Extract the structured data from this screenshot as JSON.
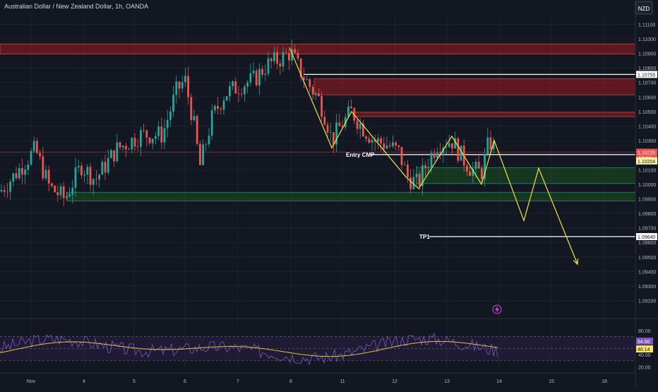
{
  "header": {
    "title": "Australian Dollar / New Zealand Dollar, 1h, OANDA"
  },
  "currency_label": "NZD",
  "colors": {
    "background": "#131722",
    "up_candle": "#26a69a",
    "down_candle": "#ef5350",
    "grid": "#1e222d",
    "axis_text": "#b2b5be",
    "zigzag": "#f0e442",
    "level_line": "#ffffff",
    "red_zone": "#b71c1c",
    "green_zone": "#1b5e20",
    "rsi_line": "#7e57c2",
    "rsi_ma": "#d8c63a",
    "rsi_band": "#2a1f45"
  },
  "chart_data": {
    "type": "candlestick",
    "title": "Australian Dollar / New Zealand Dollar, 1h, OANDA",
    "ylim": [
      1.0913,
      1.1116
    ],
    "y_ticks": [
      "1.11100",
      "1.11000",
      "1.10900",
      "1.10800",
      "1.10700",
      "1.10600",
      "1.10500",
      "1.10400",
      "1.10300",
      "1.10200",
      "1.10100",
      "1.10000",
      "1.09900",
      "1.09800",
      "1.09700",
      "1.09600",
      "1.09500",
      "1.09400",
      "1.09300",
      "1.09200"
    ],
    "x_ticks": [
      "Nov",
      "4",
      "5",
      "6",
      "7",
      "8",
      "11",
      "12",
      "13",
      "14",
      "15",
      "18"
    ],
    "candles_anchor_path": [
      [
        0,
        1.0995
      ],
      [
        20,
        1.1006
      ],
      [
        50,
        1.1024
      ],
      [
        70,
        1.0998
      ],
      [
        92,
        1.099
      ],
      [
        115,
        1.1013
      ],
      [
        135,
        1.1003
      ],
      [
        165,
        1.1024
      ],
      [
        200,
        1.1034
      ],
      [
        230,
        1.1034
      ],
      [
        250,
        1.1064
      ],
      [
        262,
        1.1072
      ],
      [
        275,
        1.104
      ],
      [
        283,
        1.1012
      ],
      [
        300,
        1.1045
      ],
      [
        318,
        1.1062
      ],
      [
        340,
        1.1068
      ],
      [
        360,
        1.1072
      ],
      [
        378,
        1.1082
      ],
      [
        400,
        1.1087
      ],
      [
        412,
        1.1091
      ],
      [
        425,
        1.1078
      ],
      [
        438,
        1.1068
      ],
      [
        452,
        1.1058
      ],
      [
        462,
        1.1045
      ],
      [
        470,
        1.103
      ],
      [
        482,
        1.104
      ],
      [
        498,
        1.105
      ],
      [
        512,
        1.104
      ],
      [
        530,
        1.103
      ],
      [
        550,
        1.1027
      ],
      [
        565,
        1.1022
      ],
      [
        577,
        1.1005
      ],
      [
        592,
        1.1
      ],
      [
        605,
        1.1015
      ],
      [
        620,
        1.1028
      ],
      [
        640,
        1.103
      ],
      [
        655,
        1.1018
      ],
      [
        668,
        1.101
      ],
      [
        682,
        1.1008
      ],
      [
        693,
        1.103
      ],
      [
        700,
        1.1025
      ]
    ],
    "price_labels": [
      {
        "text": "1.10755",
        "value": 1.10755,
        "style": "white"
      },
      {
        "text": "1.10220",
        "value": 1.1022,
        "style": "red",
        "sub": "59:06"
      },
      {
        "text": "1.10204",
        "value": 1.10204,
        "style": "yellow"
      },
      {
        "text": "1.09640",
        "value": 1.0964,
        "style": "white"
      }
    ],
    "red_zones": [
      {
        "from_x": 0,
        "y_top": 1.10965,
        "y_bot": 1.10895
      },
      {
        "from_x": 445,
        "y_top": 1.10725,
        "y_bot": 1.10615
      },
      {
        "from_x": 500,
        "y_top": 1.10495,
        "y_bot": 1.10465
      }
    ],
    "green_zones": [
      {
        "from_x": 590,
        "y_top": 1.10115,
        "y_bot": 1.10005
      },
      {
        "from_x": 95,
        "y_top": 1.09945,
        "y_bot": 1.09885
      }
    ],
    "horizontal_lines": [
      {
        "from_x": 430,
        "value": 1.10755,
        "color": "white"
      },
      {
        "from_x": 0,
        "value": 1.10222,
        "color": "red"
      },
      {
        "from_x": 525,
        "value": 1.10204,
        "color": "white"
      },
      {
        "from_x": 608,
        "value": 1.0964,
        "color": "white"
      }
    ],
    "annotations": [
      {
        "text": "Entry CMP",
        "x": 490,
        "value": 1.10204
      },
      {
        "text": "TP1",
        "x": 594,
        "value": 1.0964
      }
    ],
    "zigzag": [
      [
        410,
        1.1094
      ],
      [
        470,
        1.1025
      ],
      [
        498,
        1.105
      ],
      [
        575,
        1.1005
      ],
      [
        593,
        1.0997
      ],
      [
        640,
        1.1033
      ],
      [
        682,
        1.1
      ],
      [
        700,
        1.103
      ],
      [
        742,
        1.0975
      ],
      [
        763,
        1.1011
      ],
      [
        818,
        1.0945
      ]
    ],
    "rsi": {
      "y_ticks": [
        "80.00",
        "60.00",
        "40.00",
        "20.00"
      ],
      "ylim": [
        10,
        95
      ],
      "value_labels": [
        "54.60",
        "46.14"
      ],
      "upper": 70,
      "lower": 30
    }
  }
}
